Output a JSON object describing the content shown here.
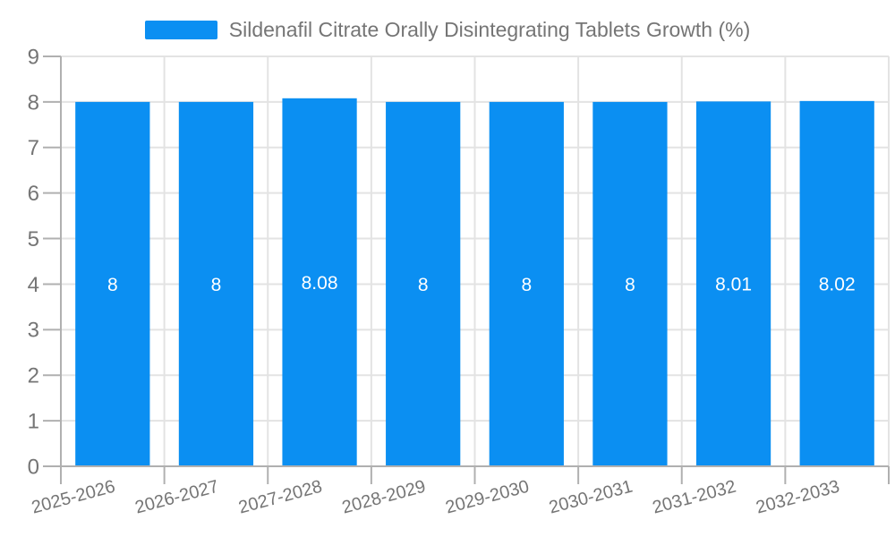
{
  "legend": {
    "label": "Sildenafil Citrate Orally Disintegrating Tablets Growth (%)"
  },
  "chart_data": {
    "type": "bar",
    "title": "Sildenafil Citrate Orally Disintegrating Tablets Growth (%)",
    "xlabel": "",
    "ylabel": "",
    "categories": [
      "2025-2026",
      "2026-2027",
      "2027-2028",
      "2028-2029",
      "2029-2030",
      "2030-2031",
      "2031-2032",
      "2032-2033"
    ],
    "values": [
      8,
      8,
      8.08,
      8,
      8,
      8,
      8.01,
      8.02
    ],
    "bar_labels": [
      "8",
      "8",
      "8.08",
      "8",
      "8",
      "8",
      "8.01",
      "8.02"
    ],
    "ylim": [
      0,
      9
    ],
    "yticks": [
      0,
      1,
      2,
      3,
      4,
      5,
      6,
      7,
      8,
      9
    ],
    "grid": true,
    "legend_position": "top",
    "x_label_rotation_deg": -15,
    "colors": {
      "bar": "#0b8ff2",
      "axis": "#b0b0b0",
      "grid": "#e3e3e3",
      "label": "#757575",
      "value_label": "#ffffff",
      "background": "#ffffff"
    }
  }
}
